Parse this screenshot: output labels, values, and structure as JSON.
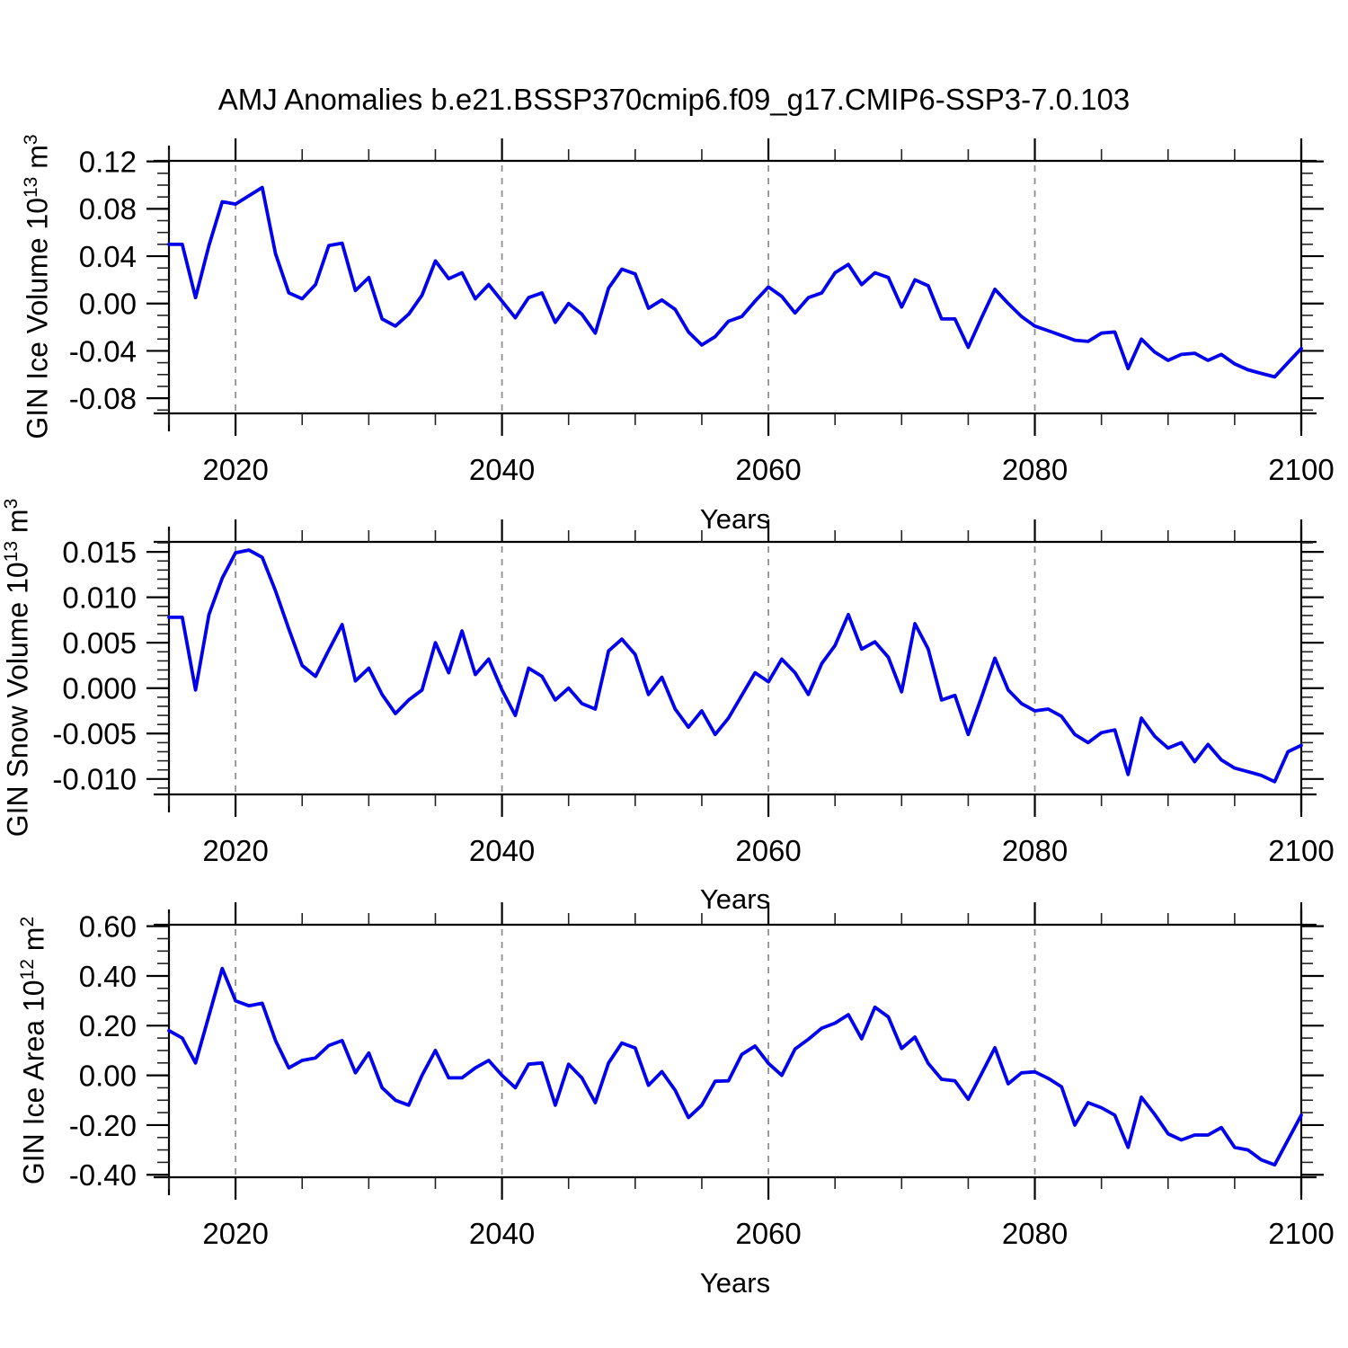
{
  "title": "AMJ Anomalies b.e21.BSSP370cmip6.f09_g17.CMIP6-SSP3-7.0.103",
  "colors": {
    "line": "#0000EE",
    "grid": "#909090",
    "axis": "#000000",
    "background": "#FFFFFF"
  },
  "years": [
    2015,
    2016,
    2017,
    2018,
    2019,
    2020,
    2021,
    2022,
    2023,
    2024,
    2025,
    2026,
    2027,
    2028,
    2029,
    2030,
    2031,
    2032,
    2033,
    2034,
    2035,
    2036,
    2037,
    2038,
    2039,
    2040,
    2041,
    2042,
    2043,
    2044,
    2045,
    2046,
    2047,
    2048,
    2049,
    2050,
    2051,
    2052,
    2053,
    2054,
    2055,
    2056,
    2057,
    2058,
    2059,
    2060,
    2061,
    2062,
    2063,
    2064,
    2065,
    2066,
    2067,
    2068,
    2069,
    2070,
    2071,
    2072,
    2073,
    2074,
    2075,
    2076,
    2077,
    2078,
    2079,
    2080,
    2081,
    2082,
    2083,
    2084,
    2085,
    2086,
    2087,
    2088,
    2089,
    2090,
    2091,
    2092,
    2093,
    2094,
    2095,
    2096,
    2097,
    2098,
    2099,
    2100
  ],
  "chart_data": [
    {
      "type": "line",
      "series_name": "GIN Ice Volume anomaly",
      "ylabel": {
        "base": "GIN Ice Volume 10",
        "exp": "13",
        "unit": " m",
        "unit_exp": "3"
      },
      "xlabel": "Years",
      "xlim": [
        2015,
        2100
      ],
      "ylim": [
        -0.0928,
        0.1205
      ],
      "xticks": [
        2020,
        2040,
        2060,
        2080,
        2100
      ],
      "xtick_labels": [
        "2020",
        "2040",
        "2060",
        "2080",
        "2100"
      ],
      "xminor_step": 5,
      "yticks": [
        0.12,
        0.08,
        0.04,
        0,
        -0.04,
        -0.08
      ],
      "ytick_labels": [
        "0.12",
        "0.08",
        "0.04",
        "0.00",
        "-0.04",
        "-0.08"
      ],
      "yminor_step": 0.01,
      "grid_x": [
        2020,
        2040,
        2060,
        2080
      ],
      "values": [
        0.05,
        0.05,
        0.005,
        0.049,
        0.086,
        0.084,
        0.091,
        0.098,
        0.042,
        0.009,
        0.004,
        0.016,
        0.049,
        0.051,
        0.011,
        0.022,
        -0.013,
        -0.019,
        -0.009,
        0.007,
        0.036,
        0.021,
        0.026,
        0.004,
        0.016,
        0.002,
        -0.012,
        0.005,
        0.009,
        -0.016,
        0.0,
        -0.009,
        -0.025,
        0.013,
        0.029,
        0.025,
        -0.004,
        0.003,
        -0.005,
        -0.024,
        -0.035,
        -0.028,
        -0.015,
        -0.011,
        0.002,
        0.014,
        0.006,
        -0.008,
        0.005,
        0.009,
        0.026,
        0.033,
        0.016,
        0.026,
        0.022,
        -0.003,
        0.02,
        0.015,
        -0.013,
        -0.013,
        -0.037,
        -0.012,
        0.012,
        0.0,
        -0.011,
        -0.019,
        -0.023,
        -0.027,
        -0.031,
        -0.032,
        -0.025,
        -0.024,
        -0.055,
        -0.03,
        -0.041,
        -0.048,
        -0.043,
        -0.042,
        -0.048,
        -0.043,
        -0.051,
        -0.056,
        -0.059,
        -0.062,
        -0.05,
        -0.038
      ]
    },
    {
      "type": "line",
      "series_name": "GIN Snow Volume anomaly",
      "ylabel": {
        "base": "GIN Snow Volume 10",
        "exp": "13",
        "unit": " m",
        "unit_exp": "3"
      },
      "xlabel": "Years",
      "xlim": [
        2015,
        2100
      ],
      "ylim": [
        -0.0117,
        0.0161
      ],
      "xticks": [
        2020,
        2040,
        2060,
        2080,
        2100
      ],
      "xtick_labels": [
        "2020",
        "2040",
        "2060",
        "2080",
        "2100"
      ],
      "xminor_step": 5,
      "yticks": [
        0.015,
        0.01,
        0.005,
        0,
        -0.005,
        -0.01
      ],
      "ytick_labels": [
        "0.015",
        "0.010",
        "0.005",
        "0.000",
        "-0.005",
        "-0.010"
      ],
      "yminor_step": 0.001,
      "grid_x": [
        2020,
        2040,
        2060,
        2080
      ],
      "values": [
        0.0078,
        0.0078,
        -0.0002,
        0.0081,
        0.0121,
        0.0149,
        0.0152,
        0.0144,
        0.0107,
        0.0065,
        0.0025,
        0.0013,
        0.0042,
        0.007,
        0.0008,
        0.0022,
        -0.0007,
        -0.0028,
        -0.0013,
        -0.0002,
        0.005,
        0.0017,
        0.0063,
        0.0015,
        0.0032,
        -0.0002,
        -0.003,
        0.0022,
        0.0013,
        -0.0013,
        0.0,
        -0.0017,
        -0.0023,
        0.0041,
        0.0054,
        0.0037,
        -0.0007,
        0.0012,
        -0.0023,
        -0.0043,
        -0.0025,
        -0.0051,
        -0.0033,
        -0.0008,
        0.0017,
        0.0007,
        0.0032,
        0.0017,
        -0.0007,
        0.0027,
        0.0047,
        0.0081,
        0.0043,
        0.0051,
        0.0034,
        -0.0004,
        0.0071,
        0.0043,
        -0.0013,
        -0.0008,
        -0.0051,
        -0.001,
        0.0033,
        -0.0002,
        -0.0017,
        -0.0025,
        -0.0023,
        -0.0031,
        -0.0051,
        -0.006,
        -0.0049,
        -0.0046,
        -0.0095,
        -0.0033,
        -0.0053,
        -0.0066,
        -0.006,
        -0.0081,
        -0.0062,
        -0.0079,
        -0.0088,
        -0.0092,
        -0.0096,
        -0.0103,
        -0.007,
        -0.0063
      ]
    },
    {
      "type": "line",
      "series_name": "GIN Ice Area anomaly",
      "ylabel": {
        "base": "GIN Ice Area 10",
        "exp": "12",
        "unit": " m",
        "unit_exp": "2"
      },
      "xlabel": "Years",
      "xlim": [
        2015,
        2100
      ],
      "ylim": [
        -0.41,
        0.606
      ],
      "xticks": [
        2020,
        2040,
        2060,
        2080,
        2100
      ],
      "xtick_labels": [
        "2020",
        "2040",
        "2060",
        "2080",
        "2100"
      ],
      "xminor_step": 5,
      "yticks": [
        0.6,
        0.4,
        0.2,
        0,
        -0.2,
        -0.4
      ],
      "ytick_labels": [
        "0.60",
        "0.40",
        "0.20",
        "0.00",
        "-0.20",
        "-0.40"
      ],
      "yminor_step": 0.05,
      "grid_x": [
        2020,
        2040,
        2060,
        2080
      ],
      "values": [
        0.18,
        0.15,
        0.05,
        0.24,
        0.43,
        0.3,
        0.28,
        0.29,
        0.14,
        0.03,
        0.06,
        0.07,
        0.12,
        0.14,
        0.01,
        0.09,
        -0.05,
        -0.1,
        -0.12,
        0.0,
        0.1,
        -0.01,
        -0.01,
        0.03,
        0.06,
        0.0,
        -0.05,
        0.045,
        0.05,
        -0.12,
        0.045,
        -0.01,
        -0.11,
        0.05,
        0.13,
        0.11,
        -0.04,
        0.015,
        -0.06,
        -0.17,
        -0.12,
        -0.024,
        -0.022,
        0.084,
        0.118,
        0.048,
        0.0,
        0.106,
        0.145,
        0.19,
        0.21,
        0.244,
        0.147,
        0.274,
        0.235,
        0.108,
        0.154,
        0.048,
        -0.016,
        -0.022,
        -0.096,
        0.006,
        0.111,
        -0.034,
        0.01,
        0.014,
        -0.012,
        -0.046,
        -0.2,
        -0.11,
        -0.13,
        -0.16,
        -0.29,
        -0.088,
        -0.157,
        -0.235,
        -0.26,
        -0.24,
        -0.24,
        -0.21,
        -0.29,
        -0.3,
        -0.34,
        -0.36,
        -0.26,
        -0.16
      ]
    }
  ]
}
